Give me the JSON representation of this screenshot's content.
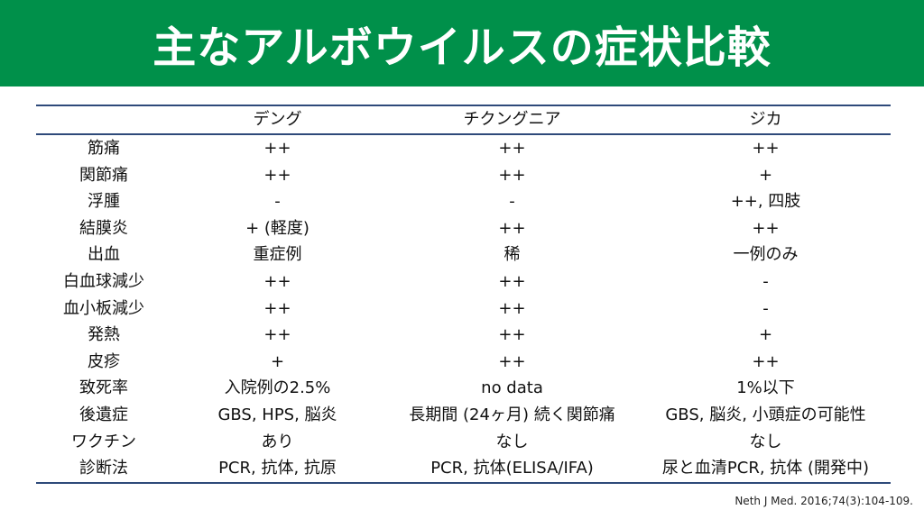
{
  "title": "主なアルボウイルスの症状比較",
  "columns": [
    "",
    "デング",
    "チクングニア",
    "ジカ"
  ],
  "rows": [
    [
      "筋痛",
      "++",
      "++",
      "++"
    ],
    [
      "関節痛",
      "++",
      "++",
      "+"
    ],
    [
      "浮腫",
      "-",
      "-",
      "++, 四肢"
    ],
    [
      "結膜炎",
      "+ (軽度)",
      "++",
      "++"
    ],
    [
      "出血",
      "重症例",
      "稀",
      "一例のみ"
    ],
    [
      "白血球減少",
      "++",
      "++",
      "-"
    ],
    [
      "血小板減少",
      "++",
      "++",
      "-"
    ],
    [
      "発熱",
      "++",
      "++",
      "+"
    ],
    [
      "皮疹",
      "+",
      "++",
      "++"
    ],
    [
      "致死率",
      "入院例の2.5%",
      "no data",
      "1%以下"
    ],
    [
      "後遺症",
      "GBS, HPS, 脳炎",
      "長期間 (24ヶ月) 続く関節痛",
      "GBS, 脳炎, 小頭症の可能性"
    ],
    [
      "ワクチン",
      "あり",
      "なし",
      "なし"
    ],
    [
      "診断法",
      "PCR, 抗体, 抗原",
      "PCR, 抗体(ELISA/IFA)",
      "尿と血清PCR, 抗体 (開発中)"
    ]
  ],
  "citation": "Neth J Med. 2016;74(3):104-109."
}
